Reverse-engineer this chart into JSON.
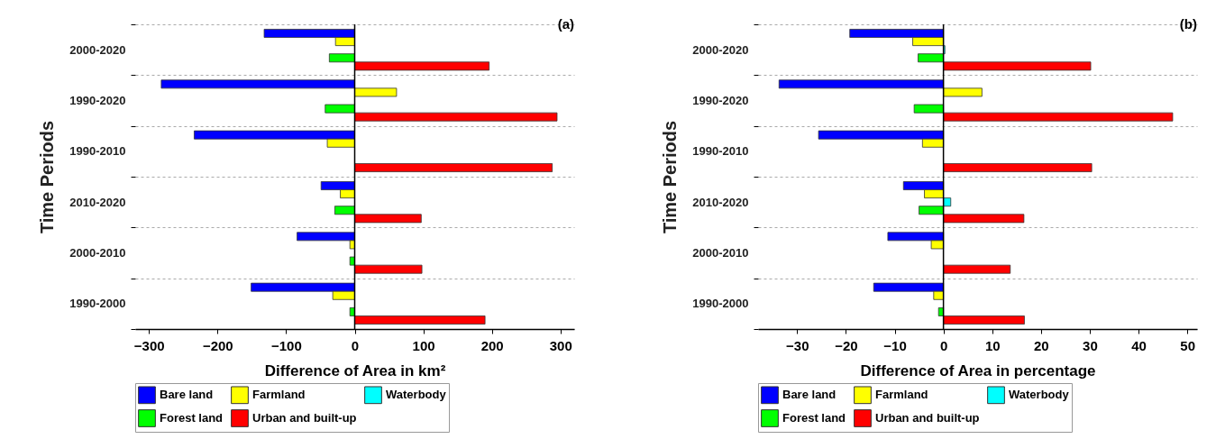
{
  "chart_data": [
    {
      "type": "bar",
      "orientation": "horizontal",
      "title": "(a)",
      "xlabel": "Difference of Area in km²",
      "ylabel": "Time Periods",
      "categories": [
        "2000-2020",
        "1990-2020",
        "1990-2010",
        "2010-2020",
        "2000-2010",
        "1990-2000"
      ],
      "xlim": [
        -320,
        320
      ],
      "xticks": [
        -300,
        -200,
        -100,
        0,
        100,
        200,
        300
      ],
      "grid": "y",
      "legend": "bottom",
      "series": [
        {
          "name": "Bare land",
          "color": "#0000ff",
          "values": [
            -132,
            -282,
            -234,
            -49,
            -84,
            -151
          ]
        },
        {
          "name": "Farmland",
          "color": "#ffff00",
          "values": [
            -28,
            61,
            -40,
            -21,
            -7,
            -32
          ]
        },
        {
          "name": "Waterbody",
          "color": "#00ffff",
          "values": [
            null,
            null,
            null,
            null,
            null,
            null
          ]
        },
        {
          "name": "Forest land",
          "color": "#00ff00",
          "values": [
            -37,
            -43,
            null,
            -29,
            -7,
            -7
          ]
        },
        {
          "name": "Urban and built-up",
          "color": "#ff0000",
          "values": [
            196,
            295,
            288,
            97,
            98,
            190
          ]
        }
      ]
    },
    {
      "type": "bar",
      "orientation": "horizontal",
      "title": "(b)",
      "xlabel": "Difference of Area in percentage",
      "ylabel": "Time Periods",
      "categories": [
        "2000-2020",
        "1990-2020",
        "1990-2010",
        "2010-2020",
        "2000-2010",
        "1990-2000"
      ],
      "xlim": [
        -38,
        52
      ],
      "xticks": [
        -30,
        -20,
        -10,
        0,
        10,
        20,
        30,
        40,
        50
      ],
      "grid": "y",
      "legend": "bottom",
      "series": [
        {
          "name": "Bare land",
          "color": "#0000ff",
          "values": [
            -19.2,
            -33.7,
            -25.6,
            -8.2,
            -11.4,
            -14.3
          ]
        },
        {
          "name": "Farmland",
          "color": "#ffff00",
          "values": [
            -6.3,
            7.9,
            -4.3,
            -3.9,
            -2.5,
            -2
          ]
        },
        {
          "name": "Waterbody",
          "color": "#00ffff",
          "values": [
            0.3,
            null,
            null,
            1.5,
            null,
            null
          ]
        },
        {
          "name": "Forest land",
          "color": "#00ff00",
          "values": [
            -5.2,
            -6,
            null,
            -5,
            null,
            -1
          ]
        },
        {
          "name": "Urban and built-up",
          "color": "#ff0000",
          "values": [
            30.2,
            47,
            30.4,
            16.5,
            13.7,
            16.6
          ]
        }
      ]
    }
  ]
}
